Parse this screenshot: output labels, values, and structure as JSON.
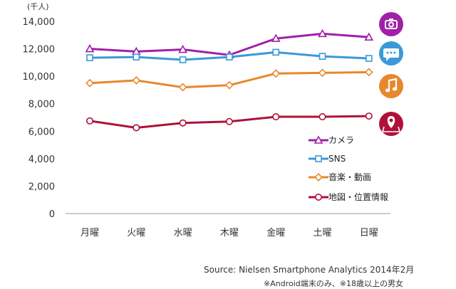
{
  "chart_data": {
    "type": "line",
    "unit_label": "(千人)",
    "categories": [
      "月曜",
      "火曜",
      "水曜",
      "木曜",
      "金曜",
      "土曜",
      "日曜"
    ],
    "ylim": [
      0,
      14000
    ],
    "yticks": [
      {
        "value": 0,
        "label": "0"
      },
      {
        "value": 2000,
        "label": "2,000"
      },
      {
        "value": 4000,
        "label": "4,000"
      },
      {
        "value": 6000,
        "label": "6,000"
      },
      {
        "value": 8000,
        "label": "8,000"
      },
      {
        "value": 10000,
        "label": "10,000"
      },
      {
        "value": 12000,
        "label": "12,000"
      },
      {
        "value": 14000,
        "label": "14,000"
      }
    ],
    "series": [
      {
        "name": "カメラ",
        "color": "#a020a8",
        "marker": "triangle",
        "icon": "camera-icon",
        "values": [
          12000,
          11800,
          11950,
          11550,
          12750,
          13100,
          12850
        ]
      },
      {
        "name": "SNS",
        "color": "#3a9ad9",
        "marker": "square",
        "icon": "chat-bubble-icon",
        "values": [
          11350,
          11400,
          11200,
          11400,
          11750,
          11450,
          11300
        ]
      },
      {
        "name": "音楽・動画",
        "color": "#e8882a",
        "marker": "diamond",
        "icon": "music-note-icon",
        "values": [
          9500,
          9700,
          9200,
          9350,
          10200,
          10250,
          10300
        ]
      },
      {
        "name": "地図・位置情報",
        "color": "#b0103a",
        "marker": "circle",
        "icon": "map-pin-icon",
        "values": [
          6750,
          6250,
          6600,
          6700,
          7050,
          7050,
          7100
        ]
      }
    ],
    "grid": false,
    "legend_position": "right"
  },
  "footer": {
    "source": "Source: Nielsen Smartphone Analytics 2014年2月",
    "note": "※Android端末のみ、※18歳以上の男女"
  }
}
